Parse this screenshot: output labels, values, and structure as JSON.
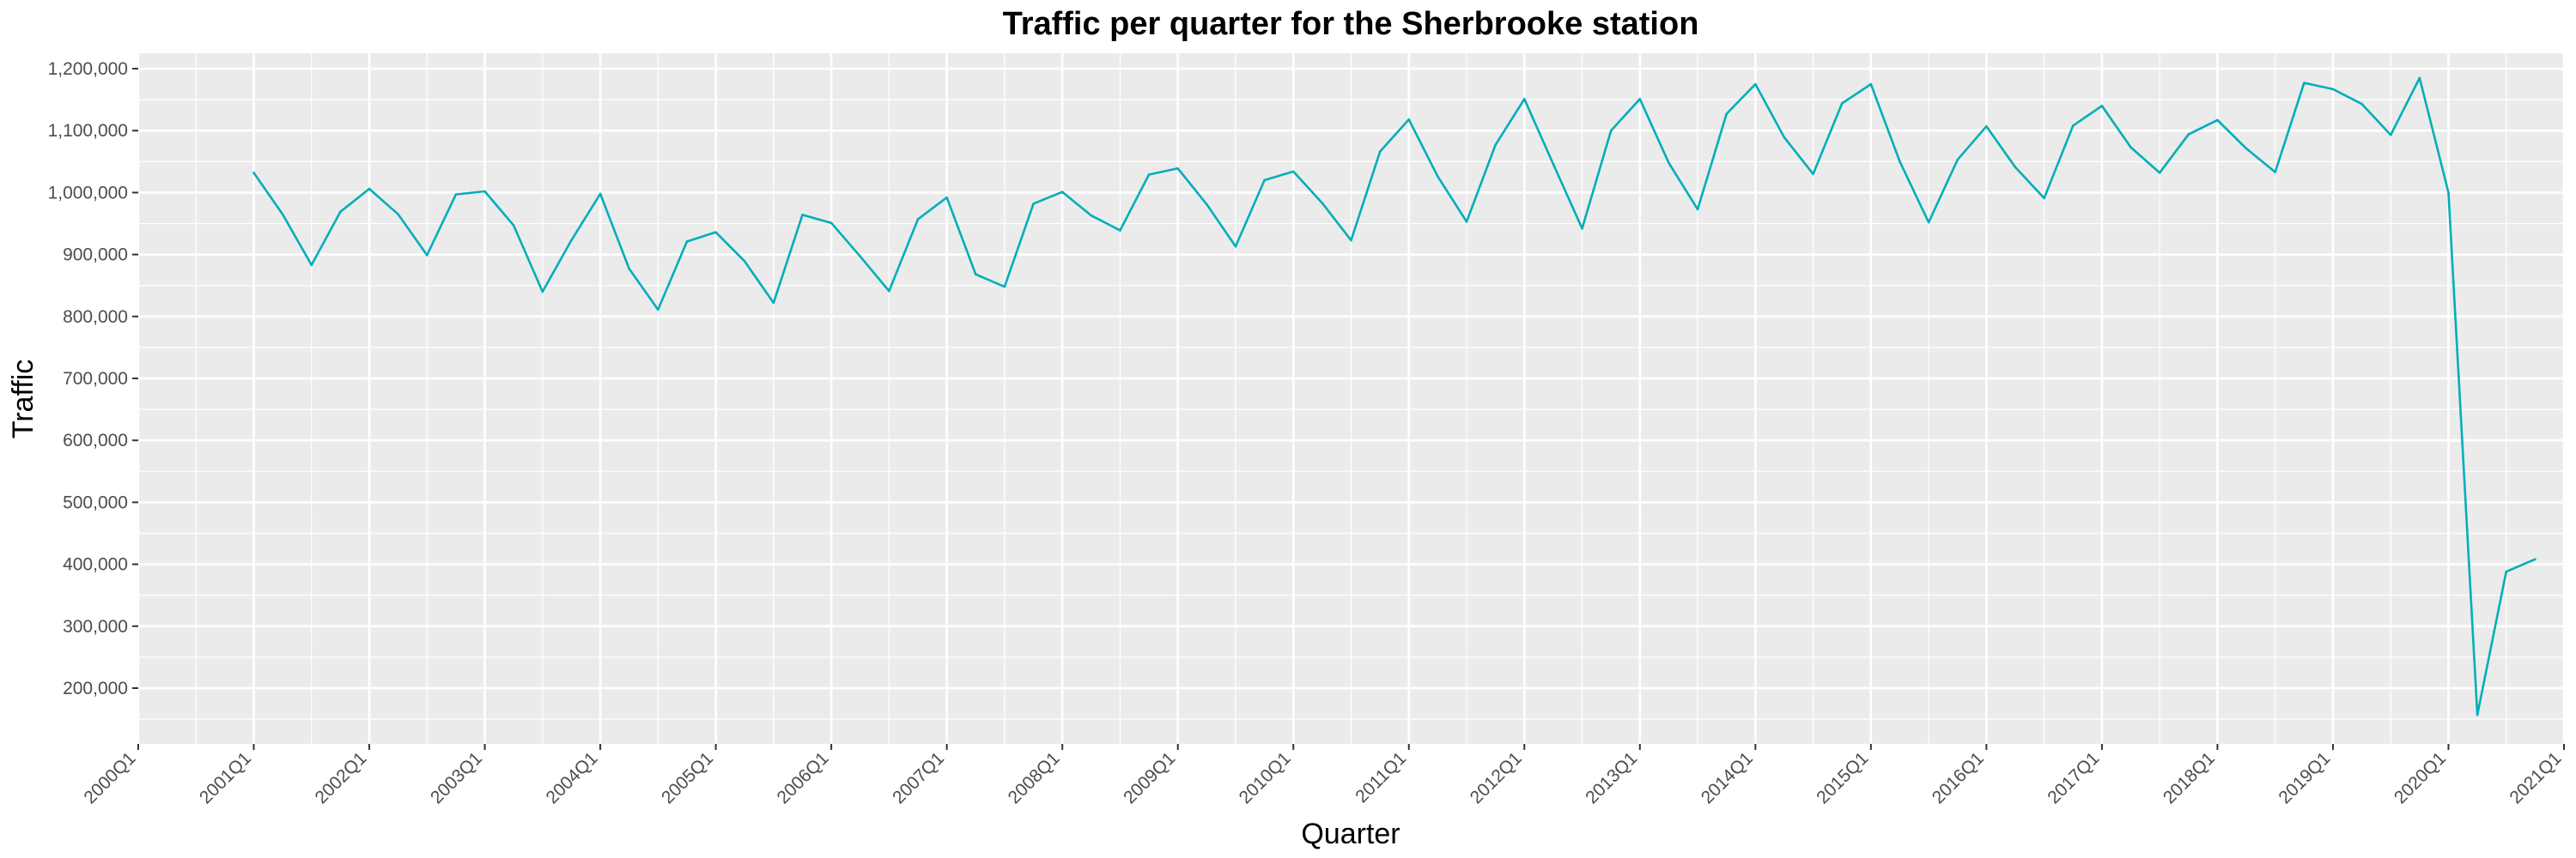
{
  "chart_data": {
    "type": "line",
    "title": "Traffic per quarter for the Sherbrooke station",
    "xlabel": "Quarter",
    "ylabel": "Traffic",
    "x_range": [
      "2000Q1",
      "2021Q1"
    ],
    "ylim": [
      110000,
      1225000
    ],
    "x_ticks": [
      "2000Q1",
      "2001Q1",
      "2002Q1",
      "2003Q1",
      "2004Q1",
      "2005Q1",
      "2006Q1",
      "2007Q1",
      "2008Q1",
      "2009Q1",
      "2010Q1",
      "2011Q1",
      "2012Q1",
      "2013Q1",
      "2014Q1",
      "2015Q1",
      "2016Q1",
      "2017Q1",
      "2018Q1",
      "2019Q1",
      "2020Q1",
      "2021Q1"
    ],
    "y_ticks": [
      200000,
      300000,
      400000,
      500000,
      600000,
      700000,
      800000,
      900000,
      1000000,
      1100000,
      1200000
    ],
    "y_tick_labels": [
      "200,000",
      "300,000",
      "400,000",
      "500,000",
      "600,000",
      "700,000",
      "800,000",
      "900,000",
      "1,000,000",
      "1,100,000",
      "1,200,000"
    ],
    "grid": true,
    "legend": "none",
    "colors": {
      "line": "#00AEBA",
      "panel": "#EBEBEB",
      "grid": "#FFFFFF",
      "tick": "#333333"
    },
    "series": [
      {
        "x": [
          "2001Q1",
          "2001Q2",
          "2001Q3",
          "2001Q4",
          "2002Q1",
          "2002Q2",
          "2002Q3",
          "2002Q4",
          "2003Q1",
          "2003Q2",
          "2003Q3",
          "2003Q4",
          "2004Q1",
          "2004Q2",
          "2004Q3",
          "2004Q4",
          "2005Q1",
          "2005Q2",
          "2005Q3",
          "2005Q4",
          "2006Q1",
          "2006Q2",
          "2006Q3",
          "2006Q4",
          "2007Q1",
          "2007Q2",
          "2007Q3",
          "2007Q4",
          "2008Q1",
          "2008Q2",
          "2008Q3",
          "2008Q4",
          "2009Q1",
          "2009Q2",
          "2009Q3",
          "2009Q4",
          "2010Q1",
          "2010Q2",
          "2010Q3",
          "2010Q4",
          "2011Q1",
          "2011Q2",
          "2011Q3",
          "2011Q4",
          "2012Q1",
          "2012Q2",
          "2012Q3",
          "2012Q4",
          "2013Q1",
          "2013Q2",
          "2013Q3",
          "2013Q4",
          "2014Q1",
          "2014Q2",
          "2014Q3",
          "2014Q4",
          "2015Q1",
          "2015Q2",
          "2015Q3",
          "2015Q4",
          "2016Q1",
          "2016Q2",
          "2016Q3",
          "2016Q4",
          "2017Q1",
          "2017Q2",
          "2017Q3",
          "2017Q4",
          "2018Q1",
          "2018Q2",
          "2018Q3",
          "2018Q4",
          "2019Q1",
          "2019Q2",
          "2019Q3",
          "2019Q4",
          "2020Q1",
          "2020Q2",
          "2020Q3",
          "2020Q4"
        ],
        "values": [
          1032000,
          965000,
          883000,
          969000,
          1006000,
          965000,
          899000,
          997000,
          1002000,
          947000,
          840000,
          923000,
          998000,
          877000,
          811000,
          921000,
          936000,
          889000,
          822000,
          964000,
          951000,
          897000,
          841000,
          957000,
          992000,
          868000,
          848000,
          982000,
          1001000,
          963000,
          939000,
          1029000,
          1039000,
          981000,
          913000,
          1020000,
          1034000,
          983000,
          923000,
          1066000,
          1118000,
          1026000,
          953000,
          1077000,
          1151000,
          1046000,
          942000,
          1100000,
          1151000,
          1048000,
          973000,
          1127000,
          1175000,
          1089000,
          1030000,
          1144000,
          1175000,
          1050000,
          952000,
          1053000,
          1107000,
          1041000,
          991000,
          1108000,
          1140000,
          1073000,
          1032000,
          1094000,
          1117000,
          1071000,
          1033000,
          1177000,
          1167000,
          1143000,
          1093000,
          1185000,
          1000000,
          157000,
          388000,
          408000
        ]
      }
    ]
  }
}
